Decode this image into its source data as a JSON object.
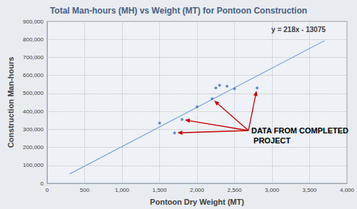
{
  "chart_data": {
    "type": "scatter",
    "title": "Total Man-hours (MH) vs Weight (MT) for Pontoon Construction",
    "x_label": "Pontoon Dry Weight (MT)",
    "y_label": "Construction Man-hours",
    "series": [
      {
        "type": "scatter",
        "color": "#4472c4",
        "marker": "circle",
        "x": [
          1500,
          1700,
          1800,
          2000,
          2200,
          2250,
          2300,
          2400,
          2500,
          2800
        ],
        "values": [
          335000,
          280000,
          355000,
          425000,
          470000,
          530000,
          545000,
          540000,
          525000,
          530000
        ]
      },
      {
        "type": "line",
        "color": "#7fa7d8",
        "line_style": "solid",
        "x": [
          300,
          3700
        ],
        "values": [
          52000,
          793000
        ]
      }
    ],
    "xlim": [
      0,
      4000
    ],
    "xticks": [
      0,
      500,
      1000,
      1500,
      2000,
      2500,
      3000,
      3500,
      4000
    ],
    "ylim": [
      0,
      900000
    ],
    "yticks": [
      0,
      100000,
      200000,
      300000,
      400000,
      500000,
      600000,
      700000,
      800000,
      900000
    ],
    "grid": true,
    "annotations": [
      {
        "text": "y = 218x - 13075"
      },
      {
        "text": "DATA FROM COMPLETED PROJECT",
        "color": "#c00000",
        "points": [
          9,
          4,
          2,
          1
        ]
      }
    ]
  }
}
